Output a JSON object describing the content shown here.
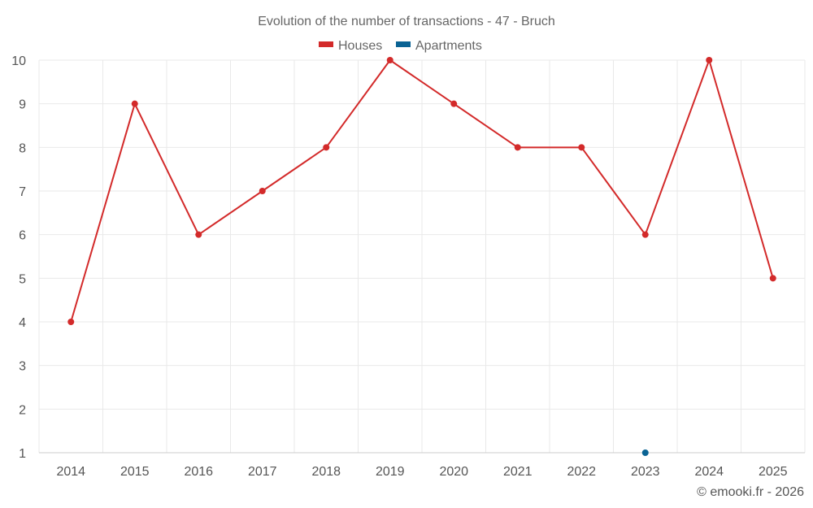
{
  "chart_data": {
    "type": "line",
    "title": "Evolution of the number of transactions - 47 - Bruch",
    "categories": [
      "2014",
      "2015",
      "2016",
      "2017",
      "2018",
      "2019",
      "2020",
      "2021",
      "2022",
      "2023",
      "2024",
      "2025"
    ],
    "series": [
      {
        "name": "Houses",
        "color": "#d32a2a",
        "values": [
          4,
          9,
          6,
          7,
          8,
          10,
          9,
          8,
          8,
          6,
          10,
          5
        ]
      },
      {
        "name": "Apartments",
        "color": "#0a6394",
        "values": [
          null,
          null,
          null,
          null,
          null,
          null,
          null,
          null,
          null,
          1,
          null,
          null
        ]
      }
    ],
    "ylim": [
      1,
      10
    ],
    "yticks": [
      "1",
      "2",
      "3",
      "4",
      "5",
      "6",
      "7",
      "8",
      "9",
      "10"
    ],
    "xlabel": "",
    "ylabel": "",
    "grid": true,
    "legend": "top-center"
  },
  "credit": "© emooki.fr - 2026"
}
